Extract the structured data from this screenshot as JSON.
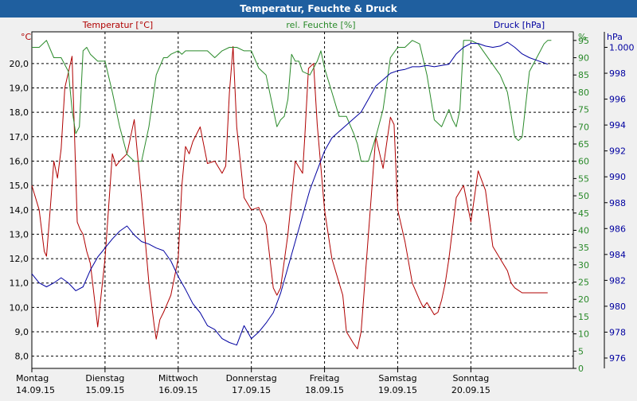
{
  "window": {
    "title": "Temperatur, Feuchte & Druck"
  },
  "chart_data": {
    "type": "line",
    "title": "Temperatur, Feuchte & Druck",
    "grid": true,
    "axes": {
      "temp": {
        "unit": "°C",
        "label": "Temperatur [°C]",
        "min": 7.5,
        "max": 21.3,
        "ticks": [
          8.0,
          9.0,
          10.0,
          11.0,
          12.0,
          13.0,
          14.0,
          15.0,
          16.0,
          17.0,
          18.0,
          19.0,
          20.0
        ],
        "color": "#b00000"
      },
      "hum": {
        "unit": "%",
        "label": "rel. Feuchte [%]",
        "min": 0,
        "max": 97.5,
        "ticks": [
          0,
          5,
          10,
          15,
          20,
          25,
          30,
          35,
          40,
          45,
          50,
          55,
          60,
          65,
          70,
          75,
          80,
          85,
          90,
          95
        ],
        "color": "#2a8a2a"
      },
      "press": {
        "unit": "hPa",
        "label": "Druck [hPa]",
        "min": 975.2,
        "max": 1001.2,
        "ticks": [
          976,
          978,
          980,
          982,
          984,
          986,
          988,
          990,
          992,
          994,
          996,
          998,
          "1.000"
        ],
        "color": "#0000a0"
      }
    },
    "days": [
      {
        "name": "Montag",
        "date": "14.09.15"
      },
      {
        "name": "Dienstag",
        "date": "15.09.15"
      },
      {
        "name": "Mittwoch",
        "date": "16.09.15"
      },
      {
        "name": "Donnerstag",
        "date": "17.09.15"
      },
      {
        "name": "Freitag",
        "date": "18.09.15"
      },
      {
        "name": "Samstag",
        "date": "19.09.15"
      },
      {
        "name": "Sonntag",
        "date": "20.09.15"
      }
    ],
    "x_range_days": [
      0,
      7.4
    ],
    "series": [
      {
        "name": "Temperatur [°C]",
        "axis": "temp",
        "color": "#b00000",
        "x": [
          0.0,
          0.1,
          0.17,
          0.2,
          0.25,
          0.3,
          0.35,
          0.4,
          0.45,
          0.55,
          0.62,
          0.66,
          0.7,
          0.75,
          0.8,
          0.9,
          1.0,
          1.1,
          1.15,
          1.2,
          1.3,
          1.4,
          1.5,
          1.6,
          1.67,
          1.7,
          1.75,
          1.8,
          1.9,
          2.0,
          2.05,
          2.1,
          2.15,
          2.2,
          2.3,
          2.4,
          2.5,
          2.6,
          2.65,
          2.7,
          2.75,
          2.8,
          2.9,
          3.0,
          3.1,
          3.2,
          3.3,
          3.35,
          3.4,
          3.5,
          3.6,
          3.7,
          3.73,
          3.78,
          3.85,
          3.9,
          4.0,
          4.1,
          4.2,
          4.25,
          4.3,
          4.4,
          4.45,
          4.5,
          4.6,
          4.7,
          4.8,
          4.9,
          4.95,
          5.0,
          5.1,
          5.2,
          5.3,
          5.35,
          5.4,
          5.5,
          5.55,
          5.6,
          5.65,
          5.7,
          5.8,
          5.9,
          6.0,
          6.1,
          6.2,
          6.3,
          6.4,
          6.5,
          6.55,
          6.6,
          6.65,
          6.7,
          6.8,
          6.9,
          7.0,
          7.05
        ],
        "y": [
          15.0,
          14.0,
          12.3,
          12.1,
          14.0,
          16.0,
          15.3,
          16.5,
          19.0,
          20.3,
          13.5,
          13.2,
          13.0,
          12.3,
          11.8,
          9.2,
          12.0,
          16.3,
          15.8,
          16.0,
          16.3,
          17.7,
          14.5,
          11.0,
          9.3,
          8.7,
          9.5,
          9.8,
          10.5,
          12.0,
          15.0,
          16.6,
          16.3,
          16.8,
          17.4,
          15.9,
          16.0,
          15.5,
          15.8,
          18.8,
          20.7,
          17.4,
          14.5,
          14.0,
          14.1,
          13.4,
          10.8,
          10.5,
          10.8,
          13.0,
          16.0,
          15.5,
          17.0,
          19.8,
          20.0,
          17.5,
          14.0,
          12.0,
          11.0,
          10.5,
          9.0,
          8.5,
          8.3,
          9.0,
          13.0,
          17.0,
          15.7,
          17.8,
          17.5,
          14.0,
          12.7,
          11.0,
          10.3,
          10.0,
          10.2,
          9.7,
          9.8,
          10.3,
          11.0,
          12.0,
          14.5,
          15.0,
          13.5,
          15.6,
          14.8,
          12.5,
          12.0,
          11.5,
          11.0,
          10.8,
          10.7,
          10.6,
          10.6,
          10.6,
          10.6,
          10.6
        ]
      },
      {
        "name": "rel. Feuchte [%]",
        "axis": "hum",
        "color": "#2a8a2a",
        "x": [
          0.0,
          0.1,
          0.2,
          0.3,
          0.4,
          0.5,
          0.55,
          0.6,
          0.65,
          0.7,
          0.75,
          0.8,
          0.9,
          1.0,
          1.1,
          1.2,
          1.3,
          1.4,
          1.5,
          1.6,
          1.7,
          1.8,
          1.85,
          1.9,
          2.0,
          2.05,
          2.1,
          2.15,
          2.2,
          2.3,
          2.4,
          2.5,
          2.6,
          2.7,
          2.8,
          2.9,
          3.0,
          3.1,
          3.2,
          3.3,
          3.35,
          3.4,
          3.45,
          3.5,
          3.55,
          3.6,
          3.65,
          3.7,
          3.8,
          3.9,
          3.95,
          4.0,
          4.1,
          4.2,
          4.3,
          4.4,
          4.45,
          4.5,
          4.6,
          4.7,
          4.8,
          4.9,
          5.0,
          5.1,
          5.2,
          5.3,
          5.4,
          5.5,
          5.6,
          5.7,
          5.75,
          5.8,
          5.85,
          5.9,
          6.0,
          6.1,
          6.2,
          6.3,
          6.4,
          6.5,
          6.6,
          6.65,
          6.7,
          6.8,
          6.9,
          7.0,
          7.05,
          7.1
        ],
        "y": [
          93.0,
          93.0,
          95.0,
          90.0,
          90.0,
          86.0,
          75.0,
          68.0,
          70.0,
          92.0,
          93.0,
          91.0,
          89.0,
          89.0,
          80.0,
          70.0,
          62.0,
          60.0,
          60.0,
          70.0,
          85.0,
          90.0,
          90.0,
          91.0,
          92.0,
          91.0,
          92.0,
          92.0,
          92.0,
          92.0,
          92.0,
          90.0,
          92.0,
          93.0,
          93.0,
          92.0,
          92.0,
          87.0,
          85.0,
          75.0,
          70.0,
          72.0,
          73.0,
          78.0,
          91.0,
          89.0,
          89.0,
          86.0,
          85.0,
          89.0,
          92.0,
          87.0,
          80.0,
          73.0,
          73.0,
          68.0,
          65.0,
          60.0,
          60.0,
          67.0,
          75.0,
          90.0,
          93.0,
          93.0,
          95.0,
          94.0,
          85.0,
          72.0,
          70.0,
          75.0,
          72.0,
          70.0,
          75.0,
          95.0,
          95.0,
          94.0,
          91.0,
          88.0,
          85.0,
          80.0,
          67.0,
          66.0,
          67.0,
          86.0,
          90.0,
          94.0,
          95.0,
          95.0
        ]
      },
      {
        "name": "Druck [hPa]",
        "axis": "press",
        "color": "#0000a0",
        "x": [
          0.0,
          0.1,
          0.2,
          0.3,
          0.4,
          0.5,
          0.6,
          0.7,
          0.8,
          0.9,
          1.0,
          1.1,
          1.2,
          1.3,
          1.4,
          1.5,
          1.6,
          1.7,
          1.8,
          1.9,
          2.0,
          2.1,
          2.2,
          2.3,
          2.4,
          2.5,
          2.6,
          2.7,
          2.8,
          2.9,
          3.0,
          3.1,
          3.2,
          3.3,
          3.4,
          3.5,
          3.6,
          3.7,
          3.8,
          3.9,
          4.0,
          4.1,
          4.2,
          4.3,
          4.4,
          4.5,
          4.6,
          4.7,
          4.8,
          4.9,
          5.0,
          5.1,
          5.2,
          5.3,
          5.4,
          5.5,
          5.6,
          5.7,
          5.8,
          5.9,
          6.0,
          6.1,
          6.2,
          6.3,
          6.4,
          6.5,
          6.6,
          6.7,
          6.8,
          6.9,
          7.0,
          7.05
        ],
        "y": [
          982.5,
          981.8,
          981.5,
          981.8,
          982.2,
          981.8,
          981.2,
          981.5,
          982.8,
          983.8,
          984.5,
          985.2,
          985.8,
          986.2,
          985.5,
          985.0,
          984.8,
          984.5,
          984.3,
          983.5,
          982.3,
          981.3,
          980.2,
          979.5,
          978.5,
          978.2,
          977.5,
          977.2,
          977.0,
          978.5,
          977.5,
          978.0,
          978.7,
          979.5,
          981.0,
          983.0,
          985.0,
          987.0,
          989.0,
          990.5,
          992.0,
          993.0,
          993.5,
          994.0,
          994.5,
          995.0,
          996.0,
          997.0,
          997.5,
          998.0,
          998.2,
          998.3,
          998.5,
          998.5,
          998.6,
          998.5,
          998.6,
          998.7,
          999.5,
          1000.0,
          1000.3,
          1000.3,
          1000.1,
          1000.0,
          1000.1,
          1000.4,
          1000.0,
          999.5,
          999.2,
          999.0,
          998.8,
          998.7
        ]
      }
    ]
  }
}
